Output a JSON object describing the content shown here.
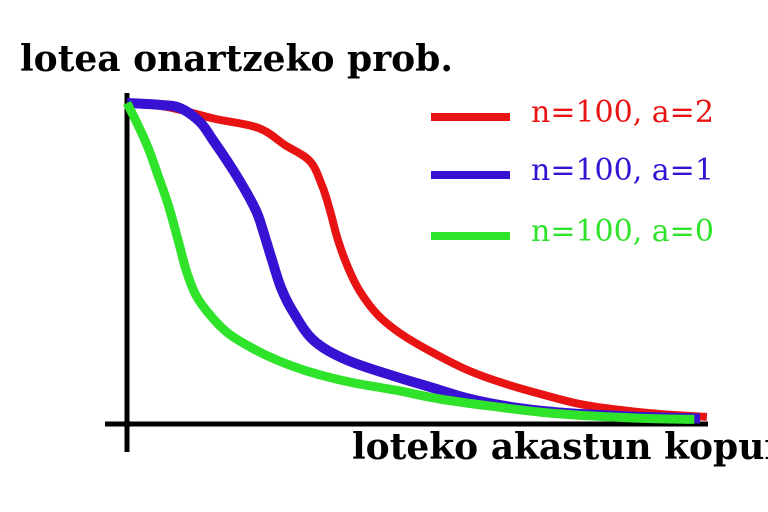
{
  "title": "lotea onartzeko prob.",
  "x_axis_label": "loteko akastun kopurua",
  "colors": {
    "red": "#e81414",
    "blue": "#3812d2",
    "green": "#2ee32a",
    "axis": "#000000",
    "background": "#ffffff"
  },
  "legend": [
    {
      "label": "n=100, a=2",
      "color_key": "red"
    },
    {
      "label": "n=100, a=1",
      "color_key": "blue"
    },
    {
      "label": "n=100, a=0",
      "color_key": "green"
    }
  ],
  "chart_data": {
    "type": "line",
    "title": "lotea onartzeko prob.",
    "xlabel": "loteko akastun kopurua",
    "ylabel": "lotea onartzeko prob.",
    "note": "Operating-characteristic (OC) curves for acceptance sampling; axes have no tick labels. x = number of defectives in lot, normalized 0-1 along the drawn axis; y = probability of accepting the lot, 0-1.",
    "grid": false,
    "legend_position": "upper right",
    "xlim": [
      0,
      1
    ],
    "ylim": [
      0,
      1
    ],
    "series": [
      {
        "name": "n=100, a=2",
        "color_key": "red",
        "points": [
          [
            0,
            1.0
          ],
          [
            0.058,
            0.991
          ],
          [
            0.101,
            0.975
          ],
          [
            0.154,
            0.95
          ],
          [
            0.229,
            0.922
          ],
          [
            0.276,
            0.868
          ],
          [
            0.319,
            0.818
          ],
          [
            0.34,
            0.743
          ],
          [
            0.354,
            0.665
          ],
          [
            0.368,
            0.571
          ],
          [
            0.386,
            0.483
          ],
          [
            0.407,
            0.408
          ],
          [
            0.438,
            0.335
          ],
          [
            0.476,
            0.279
          ],
          [
            0.525,
            0.226
          ],
          [
            0.59,
            0.166
          ],
          [
            0.651,
            0.125
          ],
          [
            0.721,
            0.088
          ],
          [
            0.791,
            0.056
          ],
          [
            0.86,
            0.038
          ],
          [
            0.93,
            0.025
          ],
          [
            1.012,
            0.016
          ]
        ]
      },
      {
        "name": "n=100, a=1",
        "color_key": "blue",
        "points": [
          [
            0,
            1.0
          ],
          [
            0.058,
            0.994
          ],
          [
            0.093,
            0.984
          ],
          [
            0.127,
            0.941
          ],
          [
            0.15,
            0.884
          ],
          [
            0.185,
            0.79
          ],
          [
            0.209,
            0.718
          ],
          [
            0.227,
            0.655
          ],
          [
            0.237,
            0.602
          ],
          [
            0.253,
            0.508
          ],
          [
            0.269,
            0.42
          ],
          [
            0.288,
            0.351
          ],
          [
            0.325,
            0.257
          ],
          [
            0.384,
            0.194
          ],
          [
            0.471,
            0.141
          ],
          [
            0.534,
            0.107
          ],
          [
            0.593,
            0.075
          ],
          [
            0.651,
            0.053
          ],
          [
            0.709,
            0.038
          ],
          [
            0.768,
            0.028
          ],
          [
            0.825,
            0.022
          ],
          [
            0.895,
            0.016
          ],
          [
            1.0,
            0.011
          ]
        ]
      },
      {
        "name": "n=100, a=0",
        "color_key": "green",
        "points": [
          [
            0,
            1.0
          ],
          [
            0.019,
            0.931
          ],
          [
            0.037,
            0.859
          ],
          [
            0.054,
            0.774
          ],
          [
            0.072,
            0.68
          ],
          [
            0.089,
            0.571
          ],
          [
            0.103,
            0.477
          ],
          [
            0.12,
            0.398
          ],
          [
            0.145,
            0.335
          ],
          [
            0.176,
            0.279
          ],
          [
            0.215,
            0.235
          ],
          [
            0.262,
            0.194
          ],
          [
            0.319,
            0.157
          ],
          [
            0.389,
            0.125
          ],
          [
            0.468,
            0.1
          ],
          [
            0.546,
            0.072
          ],
          [
            0.634,
            0.05
          ],
          [
            0.721,
            0.031
          ],
          [
            0.808,
            0.019
          ],
          [
            0.895,
            0.012
          ],
          [
            0.99,
            0.008
          ]
        ]
      }
    ]
  }
}
